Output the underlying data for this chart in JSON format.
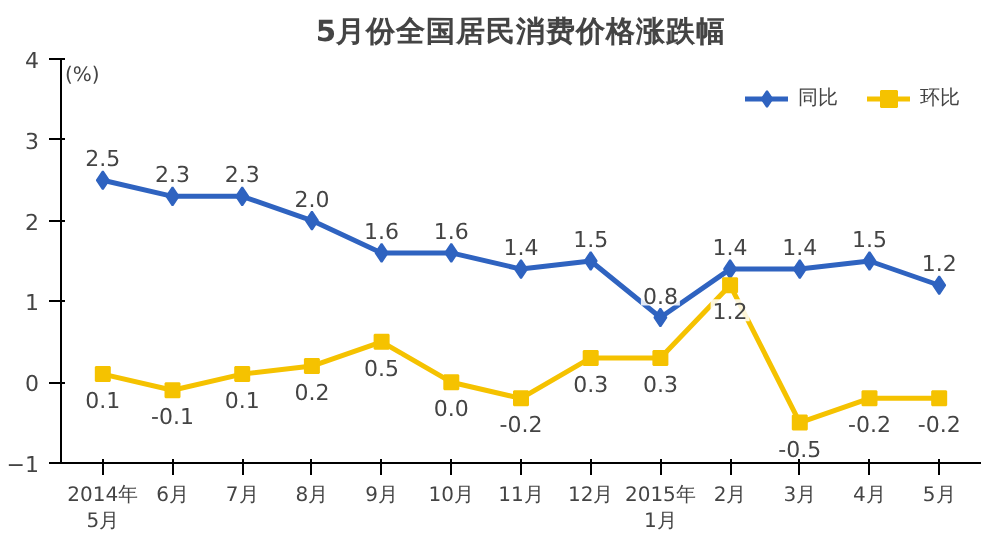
{
  "chart_data": {
    "type": "line",
    "title": "5月份全国居民消费价格涨跌幅",
    "ylabel": "(%)",
    "categories": [
      "2014年\n5月",
      "6月",
      "7月",
      "8月",
      "9月",
      "10月",
      "11月",
      "12月",
      "2015年\n1月",
      "2月",
      "3月",
      "4月",
      "5月"
    ],
    "series": [
      {
        "name": "同比",
        "color": "#2f63c0",
        "marker": "diamond",
        "values": [
          2.5,
          2.3,
          2.3,
          2.0,
          1.6,
          1.6,
          1.4,
          1.5,
          0.8,
          1.4,
          1.4,
          1.5,
          1.2
        ],
        "value_labels": [
          "2.5",
          "2.3",
          "2.3",
          "2.0",
          "1.6",
          "1.6",
          "1.4",
          "1.5",
          "0.8",
          "1.4",
          "1.4",
          "1.5",
          "1.2"
        ]
      },
      {
        "name": "环比",
        "color": "#f5c200",
        "marker": "square",
        "values": [
          0.1,
          -0.1,
          0.1,
          0.2,
          0.5,
          0.0,
          -0.2,
          0.3,
          0.3,
          1.2,
          -0.5,
          -0.2,
          -0.2
        ],
        "value_labels": [
          "0.1",
          "-0.1",
          "0.1",
          "0.2",
          "0.5",
          "0.0",
          "-0.2",
          "0.3",
          "0.3",
          "1.2",
          "-0.5",
          "-0.2",
          "-0.2"
        ]
      }
    ],
    "ylim": [
      -1,
      4
    ],
    "yticks": [
      -1,
      0,
      1,
      2,
      3,
      4
    ],
    "grid": false,
    "legend": "top right"
  }
}
